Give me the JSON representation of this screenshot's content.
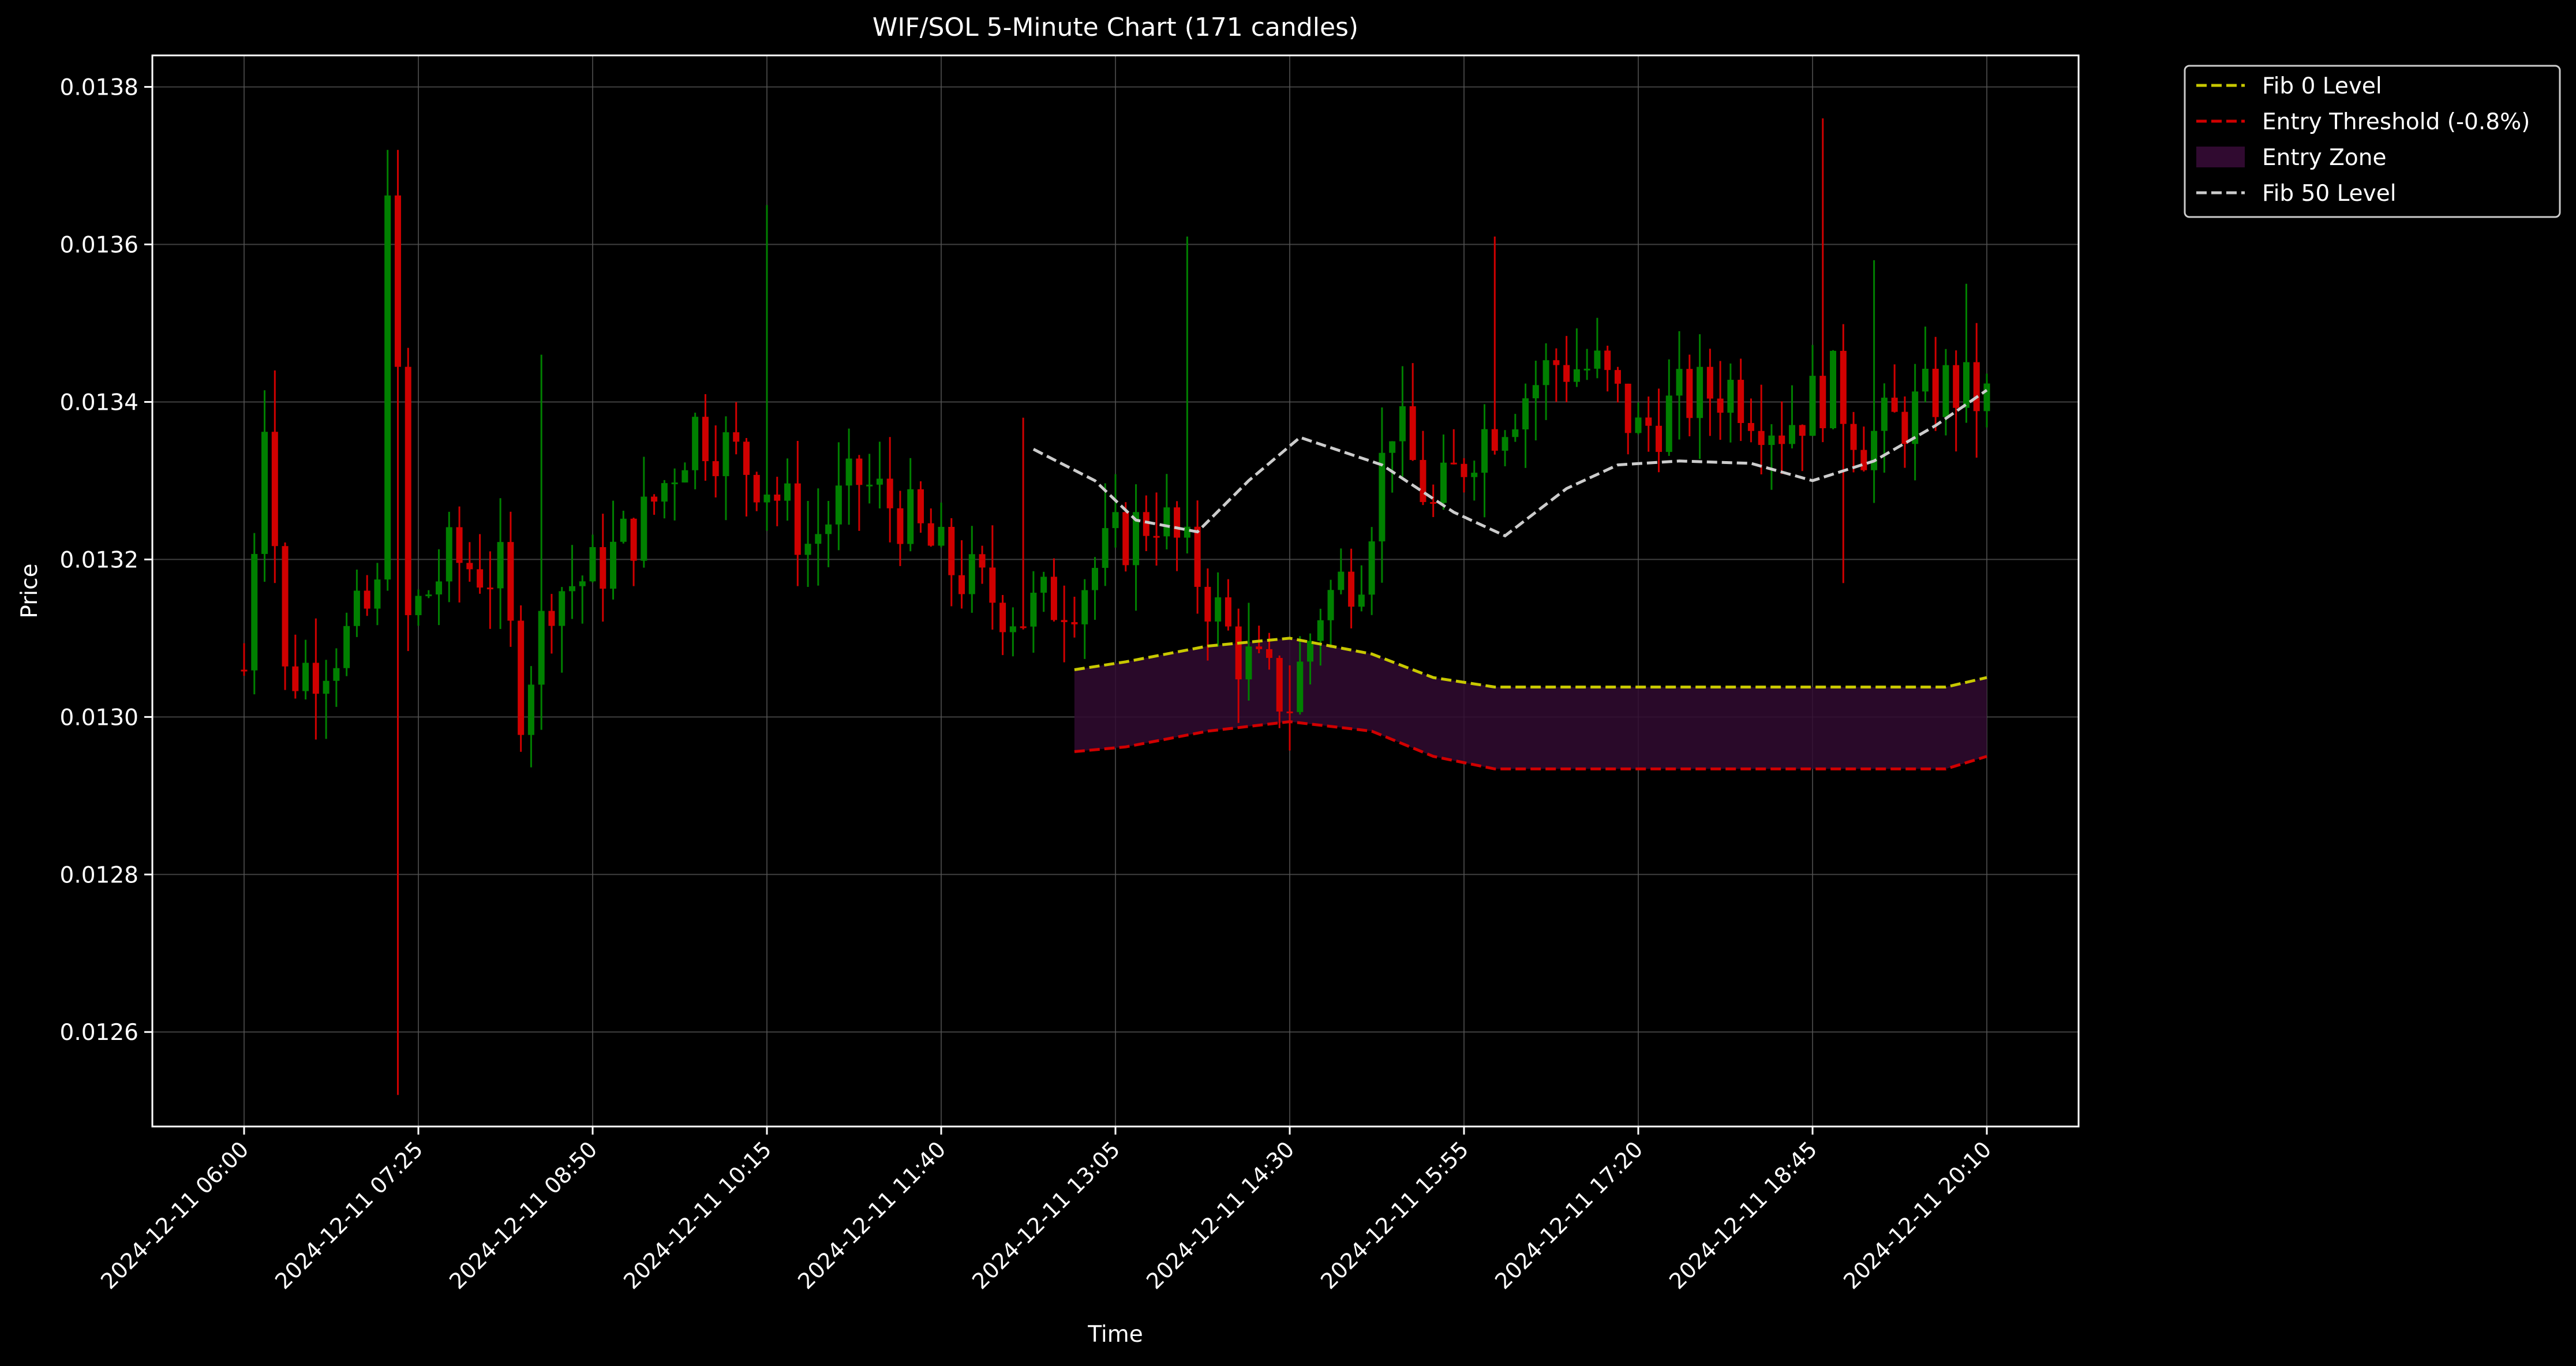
{
  "colors": {
    "background": "#000000",
    "up_candle": "#008000",
    "down_candle": "#d00000",
    "fib0": "#c8c800",
    "entry_threshold": "#d00000",
    "entry_zone": "#300a30",
    "fib50": "#cccccc",
    "grid": "#555555",
    "axis": "#ffffff"
  },
  "chart_data": {
    "type": "candlestick",
    "title": "WIF/SOL 5-Minute Chart (171 candles)",
    "xlabel": "Time",
    "ylabel": "Price",
    "ylim": [
      0.01248,
      0.01384
    ],
    "x_start": "2024-12-11 06:00",
    "x_end": "2024-12-11 20:10",
    "candle_interval_minutes": 5,
    "grid": true,
    "legend_position": "outside-top-right",
    "yticks": [
      {
        "value": 0.0126,
        "label": "0.0126"
      },
      {
        "value": 0.0128,
        "label": "0.0128"
      },
      {
        "value": 0.013,
        "label": "0.0130"
      },
      {
        "value": 0.0132,
        "label": "0.0132"
      },
      {
        "value": 0.0134,
        "label": "0.0134"
      },
      {
        "value": 0.0136,
        "label": "0.0136"
      },
      {
        "value": 0.0138,
        "label": "0.0138"
      }
    ],
    "xticks": [
      {
        "time": "2024-12-11 06:00",
        "label": "2024-12-11 06:00"
      },
      {
        "time": "2024-12-11 07:25",
        "label": "2024-12-11 07:25"
      },
      {
        "time": "2024-12-11 08:50",
        "label": "2024-12-11 08:50"
      },
      {
        "time": "2024-12-11 10:15",
        "label": "2024-12-11 10:15"
      },
      {
        "time": "2024-12-11 11:40",
        "label": "2024-12-11 11:40"
      },
      {
        "time": "2024-12-11 13:05",
        "label": "2024-12-11 13:05"
      },
      {
        "time": "2024-12-11 14:30",
        "label": "2024-12-11 14:30"
      },
      {
        "time": "2024-12-11 15:55",
        "label": "2024-12-11 15:55"
      },
      {
        "time": "2024-12-11 17:20",
        "label": "2024-12-11 17:20"
      },
      {
        "time": "2024-12-11 18:45",
        "label": "2024-12-11 18:45"
      },
      {
        "time": "2024-12-11 20:10",
        "label": "2024-12-11 20:10"
      }
    ],
    "anchor_closes": [
      [
        "2024-12-11 06:00",
        0.01306
      ],
      [
        "2024-12-11 06:10",
        0.0134
      ],
      [
        "2024-12-11 06:20",
        0.01305
      ],
      [
        "2024-12-11 06:35",
        0.01307
      ],
      [
        "2024-12-11 06:50",
        0.0131
      ],
      [
        "2024-12-11 07:05",
        0.01315
      ],
      [
        "2024-12-11 07:10",
        0.0137
      ],
      [
        "2024-12-11 07:20",
        0.01312
      ],
      [
        "2024-12-11 07:40",
        0.0132
      ],
      [
        "2024-12-11 08:05",
        0.01318
      ],
      [
        "2024-12-11 08:15",
        0.01302
      ],
      [
        "2024-12-11 08:30",
        0.01316
      ],
      [
        "2024-12-11 08:50",
        0.01318
      ],
      [
        "2024-12-11 09:15",
        0.01325
      ],
      [
        "2024-12-11 09:40",
        0.01337
      ],
      [
        "2024-12-11 10:15",
        0.0133
      ],
      [
        "2024-12-11 10:35",
        0.01322
      ],
      [
        "2024-12-11 11:00",
        0.0133
      ],
      [
        "2024-12-11 11:20",
        0.01326
      ],
      [
        "2024-12-11 11:40",
        0.0132
      ],
      [
        "2024-12-11 12:00",
        0.01316
      ],
      [
        "2024-12-11 12:20",
        0.01313
      ],
      [
        "2024-12-11 12:45",
        0.01316
      ],
      [
        "2024-12-11 13:05",
        0.01322
      ],
      [
        "2024-12-11 13:25",
        0.01326
      ],
      [
        "2024-12-11 13:45",
        0.01318
      ],
      [
        "2024-12-11 14:05",
        0.01308
      ],
      [
        "2024-12-11 14:20",
        0.01304
      ],
      [
        "2024-12-11 14:30",
        0.01302
      ],
      [
        "2024-12-11 14:45",
        0.01314
      ],
      [
        "2024-12-11 15:05",
        0.0132
      ],
      [
        "2024-12-11 15:20",
        0.01338
      ],
      [
        "2024-12-11 15:40",
        0.01326
      ],
      [
        "2024-12-11 16:00",
        0.01335
      ],
      [
        "2024-12-11 16:20",
        0.0134
      ],
      [
        "2024-12-11 16:40",
        0.01345
      ],
      [
        "2024-12-11 17:00",
        0.01344
      ],
      [
        "2024-12-11 17:20",
        0.01336
      ],
      [
        "2024-12-11 17:40",
        0.0134
      ],
      [
        "2024-12-11 18:05",
        0.01342
      ],
      [
        "2024-12-11 18:30",
        0.01337
      ],
      [
        "2024-12-11 18:45",
        0.0134
      ],
      [
        "2024-12-11 18:55",
        0.01342
      ],
      [
        "2024-12-11 19:10",
        0.01335
      ],
      [
        "2024-12-11 19:30",
        0.01338
      ],
      [
        "2024-12-11 19:50",
        0.01342
      ],
      [
        "2024-12-11 20:10",
        0.0134
      ]
    ],
    "spikes": [
      {
        "time": "2024-12-11 06:15",
        "high": 0.01344
      },
      {
        "time": "2024-12-11 07:10",
        "high": 0.01372
      },
      {
        "time": "2024-12-11 07:15",
        "high": 0.01372,
        "low": 0.01252
      },
      {
        "time": "2024-12-11 08:25",
        "high": 0.01346
      },
      {
        "time": "2024-12-11 10:15",
        "high": 0.01365
      },
      {
        "time": "2024-12-11 12:20",
        "high": 0.01338
      },
      {
        "time": "2024-12-11 13:40",
        "high": 0.01361
      },
      {
        "time": "2024-12-11 16:10",
        "high": 0.01361
      },
      {
        "time": "2024-12-11 18:50",
        "high": 0.01376
      },
      {
        "time": "2024-12-11 19:00",
        "low": 0.01317
      },
      {
        "time": "2024-12-11 19:15",
        "high": 0.01358
      },
      {
        "time": "2024-12-11 20:00",
        "high": 0.01355
      }
    ],
    "series": [
      {
        "name": "Fib 0 Level",
        "style": "dashed",
        "points": [
          [
            "2024-12-11 12:45",
            0.01306
          ],
          [
            "2024-12-11 13:10",
            0.01307
          ],
          [
            "2024-12-11 13:50",
            0.01309
          ],
          [
            "2024-12-11 14:30",
            0.0131
          ],
          [
            "2024-12-11 15:10",
            0.01308
          ],
          [
            "2024-12-11 15:40",
            0.01305
          ],
          [
            "2024-12-11 16:10",
            0.013038
          ],
          [
            "2024-12-11 17:00",
            0.013038
          ],
          [
            "2024-12-11 18:00",
            0.013038
          ],
          [
            "2024-12-11 19:00",
            0.013038
          ],
          [
            "2024-12-11 19:50",
            0.013038
          ],
          [
            "2024-12-11 20:10",
            0.01305
          ]
        ]
      },
      {
        "name": "Entry Threshold (-0.8%)",
        "style": "dashed",
        "points": [
          [
            "2024-12-11 12:45",
            0.012956
          ],
          [
            "2024-12-11 13:10",
            0.012962
          ],
          [
            "2024-12-11 13:50",
            0.012982
          ],
          [
            "2024-12-11 14:30",
            0.012994
          ],
          [
            "2024-12-11 15:10",
            0.012982
          ],
          [
            "2024-12-11 15:40",
            0.01295
          ],
          [
            "2024-12-11 16:10",
            0.012934
          ],
          [
            "2024-12-11 17:00",
            0.012934
          ],
          [
            "2024-12-11 18:00",
            0.012934
          ],
          [
            "2024-12-11 19:00",
            0.012934
          ],
          [
            "2024-12-11 19:50",
            0.012934
          ],
          [
            "2024-12-11 20:10",
            0.01295
          ]
        ]
      },
      {
        "name": "Entry Zone",
        "style": "fill-between",
        "between": [
          "Fib 0 Level",
          "Entry Threshold (-0.8%)"
        ]
      },
      {
        "name": "Fib 50 Level",
        "style": "dashed",
        "points": [
          [
            "2024-12-11 12:25",
            0.01334
          ],
          [
            "2024-12-11 12:55",
            0.0133
          ],
          [
            "2024-12-11 13:15",
            0.01325
          ],
          [
            "2024-12-11 13:45",
            0.013235
          ],
          [
            "2024-12-11 14:10",
            0.0133
          ],
          [
            "2024-12-11 14:35",
            0.013355
          ],
          [
            "2024-12-11 15:15",
            0.01332
          ],
          [
            "2024-12-11 15:50",
            0.01326
          ],
          [
            "2024-12-11 16:15",
            0.01323
          ],
          [
            "2024-12-11 16:45",
            0.01329
          ],
          [
            "2024-12-11 17:10",
            0.01332
          ],
          [
            "2024-12-11 17:40",
            0.013325
          ],
          [
            "2024-12-11 18:15",
            0.013322
          ],
          [
            "2024-12-11 18:45",
            0.0133
          ],
          [
            "2024-12-11 19:15",
            0.013325
          ],
          [
            "2024-12-11 19:45",
            0.01337
          ],
          [
            "2024-12-11 20:10",
            0.013415
          ]
        ]
      }
    ],
    "legend": [
      {
        "label": "Fib 0 Level",
        "kind": "dashed-line",
        "color": "#c8c800"
      },
      {
        "label": "Entry Threshold (-0.8%)",
        "kind": "dashed-line",
        "color": "#d00000"
      },
      {
        "label": "Entry Zone",
        "kind": "fill",
        "color": "#300a30"
      },
      {
        "label": "Fib 50 Level",
        "kind": "dashed-line",
        "color": "#cccccc"
      }
    ]
  }
}
